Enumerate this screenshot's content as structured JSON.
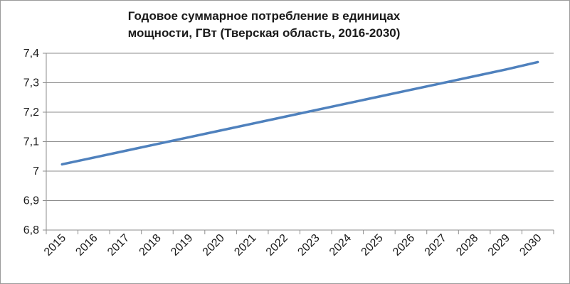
{
  "chart_data": {
    "type": "line",
    "title_line1": "Годовое суммарное потребление в  единицах",
    "title_line2": "мощности, ГВт (Тверская область, 2016-2030)",
    "x": [
      "2015",
      "2016",
      "2017",
      "2018",
      "2019",
      "2020",
      "2021",
      "2022",
      "2023",
      "2024",
      "2025",
      "2026",
      "2027",
      "2028",
      "2029",
      "2030"
    ],
    "series": [
      {
        "values": [
          7.023,
          7.046,
          7.069,
          7.092,
          7.115,
          7.138,
          7.161,
          7.184,
          7.207,
          7.23,
          7.253,
          7.276,
          7.299,
          7.322,
          7.345,
          7.37
        ]
      }
    ],
    "ylim": [
      6.8,
      7.4
    ],
    "yticks": [
      "6,8",
      "6,9",
      "7",
      "7,1",
      "7,2",
      "7,3",
      "7,4"
    ],
    "ytick_values": [
      6.8,
      6.9,
      7.0,
      7.1,
      7.2,
      7.3,
      7.4
    ],
    "grid": true,
    "line_color": "#4f81bd"
  }
}
